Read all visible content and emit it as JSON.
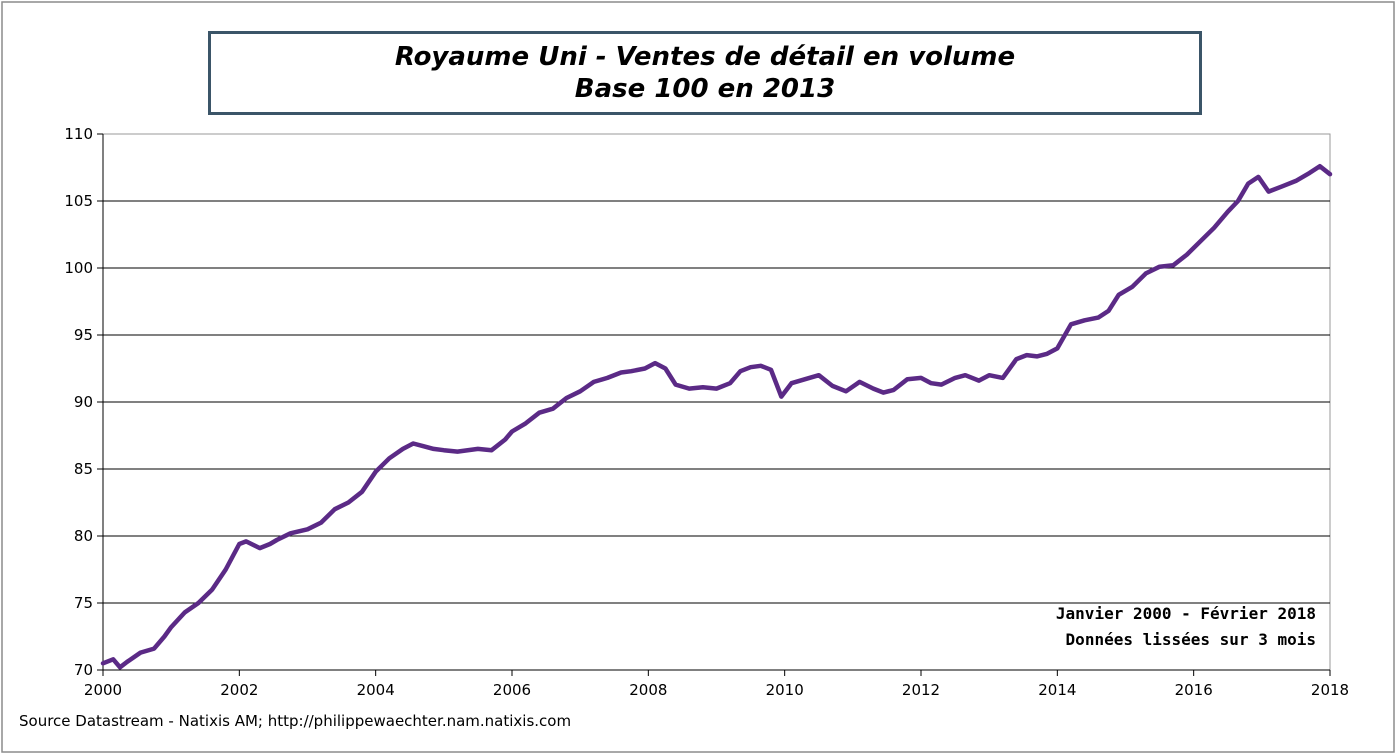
{
  "chart_data": {
    "type": "line",
    "title": "Royaume Uni - Ventes de détail en volume",
    "subtitle": "Base 100 en 2013",
    "xlabel": "",
    "ylabel": "",
    "xlim": [
      2000,
      2018
    ],
    "ylim": [
      70,
      110
    ],
    "x_ticks": [
      "2000",
      "2002",
      "2004",
      "2006",
      "2008",
      "2010",
      "2012",
      "2014",
      "2016",
      "2018"
    ],
    "y_ticks": [
      "70",
      "75",
      "80",
      "85",
      "90",
      "95",
      "100",
      "105",
      "110"
    ],
    "grid": "horizontal",
    "annotations": [
      "Janvier 2000 - Février 2018",
      "Données lissées sur 3 mois"
    ],
    "source": "Source Datastream - Natixis AM; http://philippewaechter.nam.natixis.com",
    "line_color": "#5b2a86",
    "series": [
      {
        "x": [
          2000.0,
          2000.15,
          2000.25,
          2000.35,
          2000.55,
          2000.75,
          2000.9,
          2001.0,
          2001.2,
          2001.4,
          2001.6,
          2001.8,
          2002.0,
          2002.1,
          2002.3,
          2002.45,
          2002.55,
          2002.75,
          2003.0,
          2003.2,
          2003.4,
          2003.6,
          2003.8,
          2004.0,
          2004.2,
          2004.4,
          2004.55,
          2004.7,
          2004.85,
          2005.0,
          2005.2,
          2005.5,
          2005.7,
          2005.9,
          2006.0,
          2006.2,
          2006.4,
          2006.6,
          2006.8,
          2007.0,
          2007.2,
          2007.4,
          2007.6,
          2007.75,
          2007.95,
          2008.1,
          2008.25,
          2008.4,
          2008.6,
          2008.8,
          2009.0,
          2009.2,
          2009.35,
          2009.5,
          2009.65,
          2009.8,
          2009.95,
          2010.1,
          2010.3,
          2010.5,
          2010.7,
          2010.9,
          2011.1,
          2011.3,
          2011.45,
          2011.6,
          2011.8,
          2012.0,
          2012.15,
          2012.3,
          2012.5,
          2012.65,
          2012.85,
          2013.0,
          2013.2,
          2013.4,
          2013.55,
          2013.7,
          2013.85,
          2014.0,
          2014.2,
          2014.4,
          2014.6,
          2014.75,
          2014.9,
          2015.1,
          2015.3,
          2015.5,
          2015.7,
          2015.9,
          2016.1,
          2016.3,
          2016.5,
          2016.65,
          2016.8,
          2016.95,
          2017.1,
          2017.3,
          2017.5,
          2017.7,
          2017.85,
          2018.0
        ],
        "y": [
          70.5,
          70.8,
          70.2,
          70.6,
          71.3,
          71.6,
          72.5,
          73.2,
          74.3,
          75.0,
          76.0,
          77.5,
          79.4,
          79.6,
          79.1,
          79.4,
          79.7,
          80.2,
          80.5,
          81.0,
          82.0,
          82.5,
          83.3,
          84.8,
          85.8,
          86.5,
          86.9,
          86.7,
          86.5,
          86.4,
          86.3,
          86.5,
          86.4,
          87.2,
          87.8,
          88.4,
          89.2,
          89.5,
          90.3,
          90.8,
          91.5,
          91.8,
          92.2,
          92.3,
          92.5,
          92.9,
          92.5,
          91.3,
          91.0,
          91.1,
          91.0,
          91.4,
          92.3,
          92.6,
          92.7,
          92.4,
          90.4,
          91.4,
          91.7,
          92.0,
          91.2,
          90.8,
          91.5,
          91.0,
          90.7,
          90.9,
          91.7,
          91.8,
          91.4,
          91.3,
          91.8,
          92.0,
          91.6,
          92.0,
          91.8,
          93.2,
          93.5,
          93.4,
          93.6,
          94.0,
          95.8,
          96.1,
          96.3,
          96.8,
          98.0,
          98.6,
          99.6,
          100.1,
          100.2,
          101.0,
          102.0,
          103.0,
          104.2,
          105.0,
          106.3,
          106.8,
          105.7,
          106.1,
          106.5,
          107.1,
          107.6,
          107.0
        ]
      }
    ]
  }
}
